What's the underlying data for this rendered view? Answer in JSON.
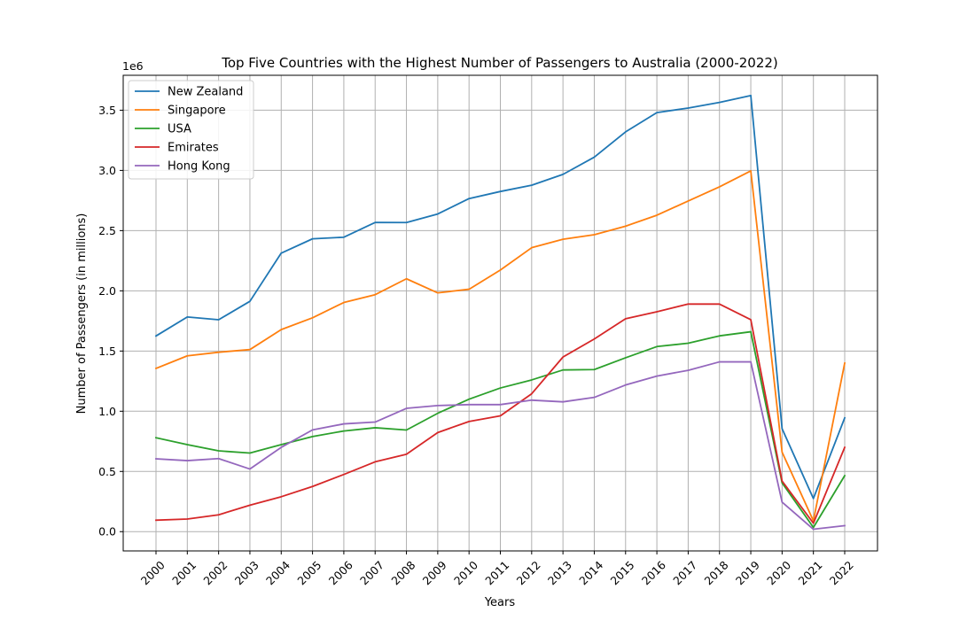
{
  "chart_data": {
    "type": "line",
    "title": "Top Five Countries with the Highest Number of Passengers to Australia (2000-2022)",
    "xlabel": "Years",
    "ylabel": "Number of Passengers (in millions)",
    "y_scale_label": "1e6",
    "x": [
      "2000",
      "2001",
      "2002",
      "2003",
      "2004",
      "2005",
      "2006",
      "2007",
      "2008",
      "2009",
      "2010",
      "2011",
      "2012",
      "2013",
      "2014",
      "2015",
      "2016",
      "2017",
      "2018",
      "2019",
      "2020",
      "2021",
      "2022"
    ],
    "ylim": [
      -160000,
      3790000
    ],
    "yticks": [
      0,
      500000,
      1000000,
      1500000,
      2000000,
      2500000,
      3000000,
      3500000
    ],
    "ytick_labels": [
      "0.0",
      "0.5",
      "1.0",
      "1.5",
      "2.0",
      "2.5",
      "3.0",
      "3.5"
    ],
    "grid": true,
    "legend_position": "upper-left",
    "series": [
      {
        "name": "New Zealand",
        "color": "#1f77b4",
        "values": [
          1625000,
          1783000,
          1760000,
          1913000,
          2313000,
          2432000,
          2445000,
          2568000,
          2567000,
          2638000,
          2766000,
          2825000,
          2877000,
          2967000,
          3110000,
          3320000,
          3480000,
          3518000,
          3565000,
          3622000,
          855000,
          275000,
          945000
        ]
      },
      {
        "name": "Singapore",
        "color": "#ff7f0e",
        "values": [
          1356000,
          1460000,
          1490000,
          1512000,
          1678000,
          1776000,
          1903000,
          1968000,
          2100000,
          1983000,
          2013000,
          2173000,
          2358000,
          2428000,
          2466000,
          2537000,
          2628000,
          2746000,
          2864000,
          2996000,
          660000,
          90000,
          1400000
        ]
      },
      {
        "name": "USA",
        "color": "#2ca02c",
        "values": [
          780000,
          723000,
          671000,
          653000,
          723000,
          790000,
          836000,
          863000,
          844000,
          983000,
          1100000,
          1193000,
          1260000,
          1343000,
          1346000,
          1444000,
          1537000,
          1565000,
          1626000,
          1660000,
          405000,
          35000,
          465000
        ]
      },
      {
        "name": "Emirates",
        "color": "#d62728",
        "values": [
          95000,
          105000,
          140000,
          220000,
          290000,
          375000,
          475000,
          580000,
          643000,
          823000,
          915000,
          962000,
          1145000,
          1450000,
          1600000,
          1768000,
          1826000,
          1890000,
          1890000,
          1760000,
          420000,
          70000,
          700000
        ]
      },
      {
        "name": "Hong Kong",
        "color": "#9467bd",
        "values": [
          605000,
          590000,
          607000,
          520000,
          700000,
          845000,
          895000,
          910000,
          1024000,
          1047000,
          1055000,
          1055000,
          1092000,
          1078000,
          1115000,
          1218000,
          1292000,
          1340000,
          1410000,
          1410000,
          245000,
          20000,
          50000
        ]
      }
    ]
  }
}
